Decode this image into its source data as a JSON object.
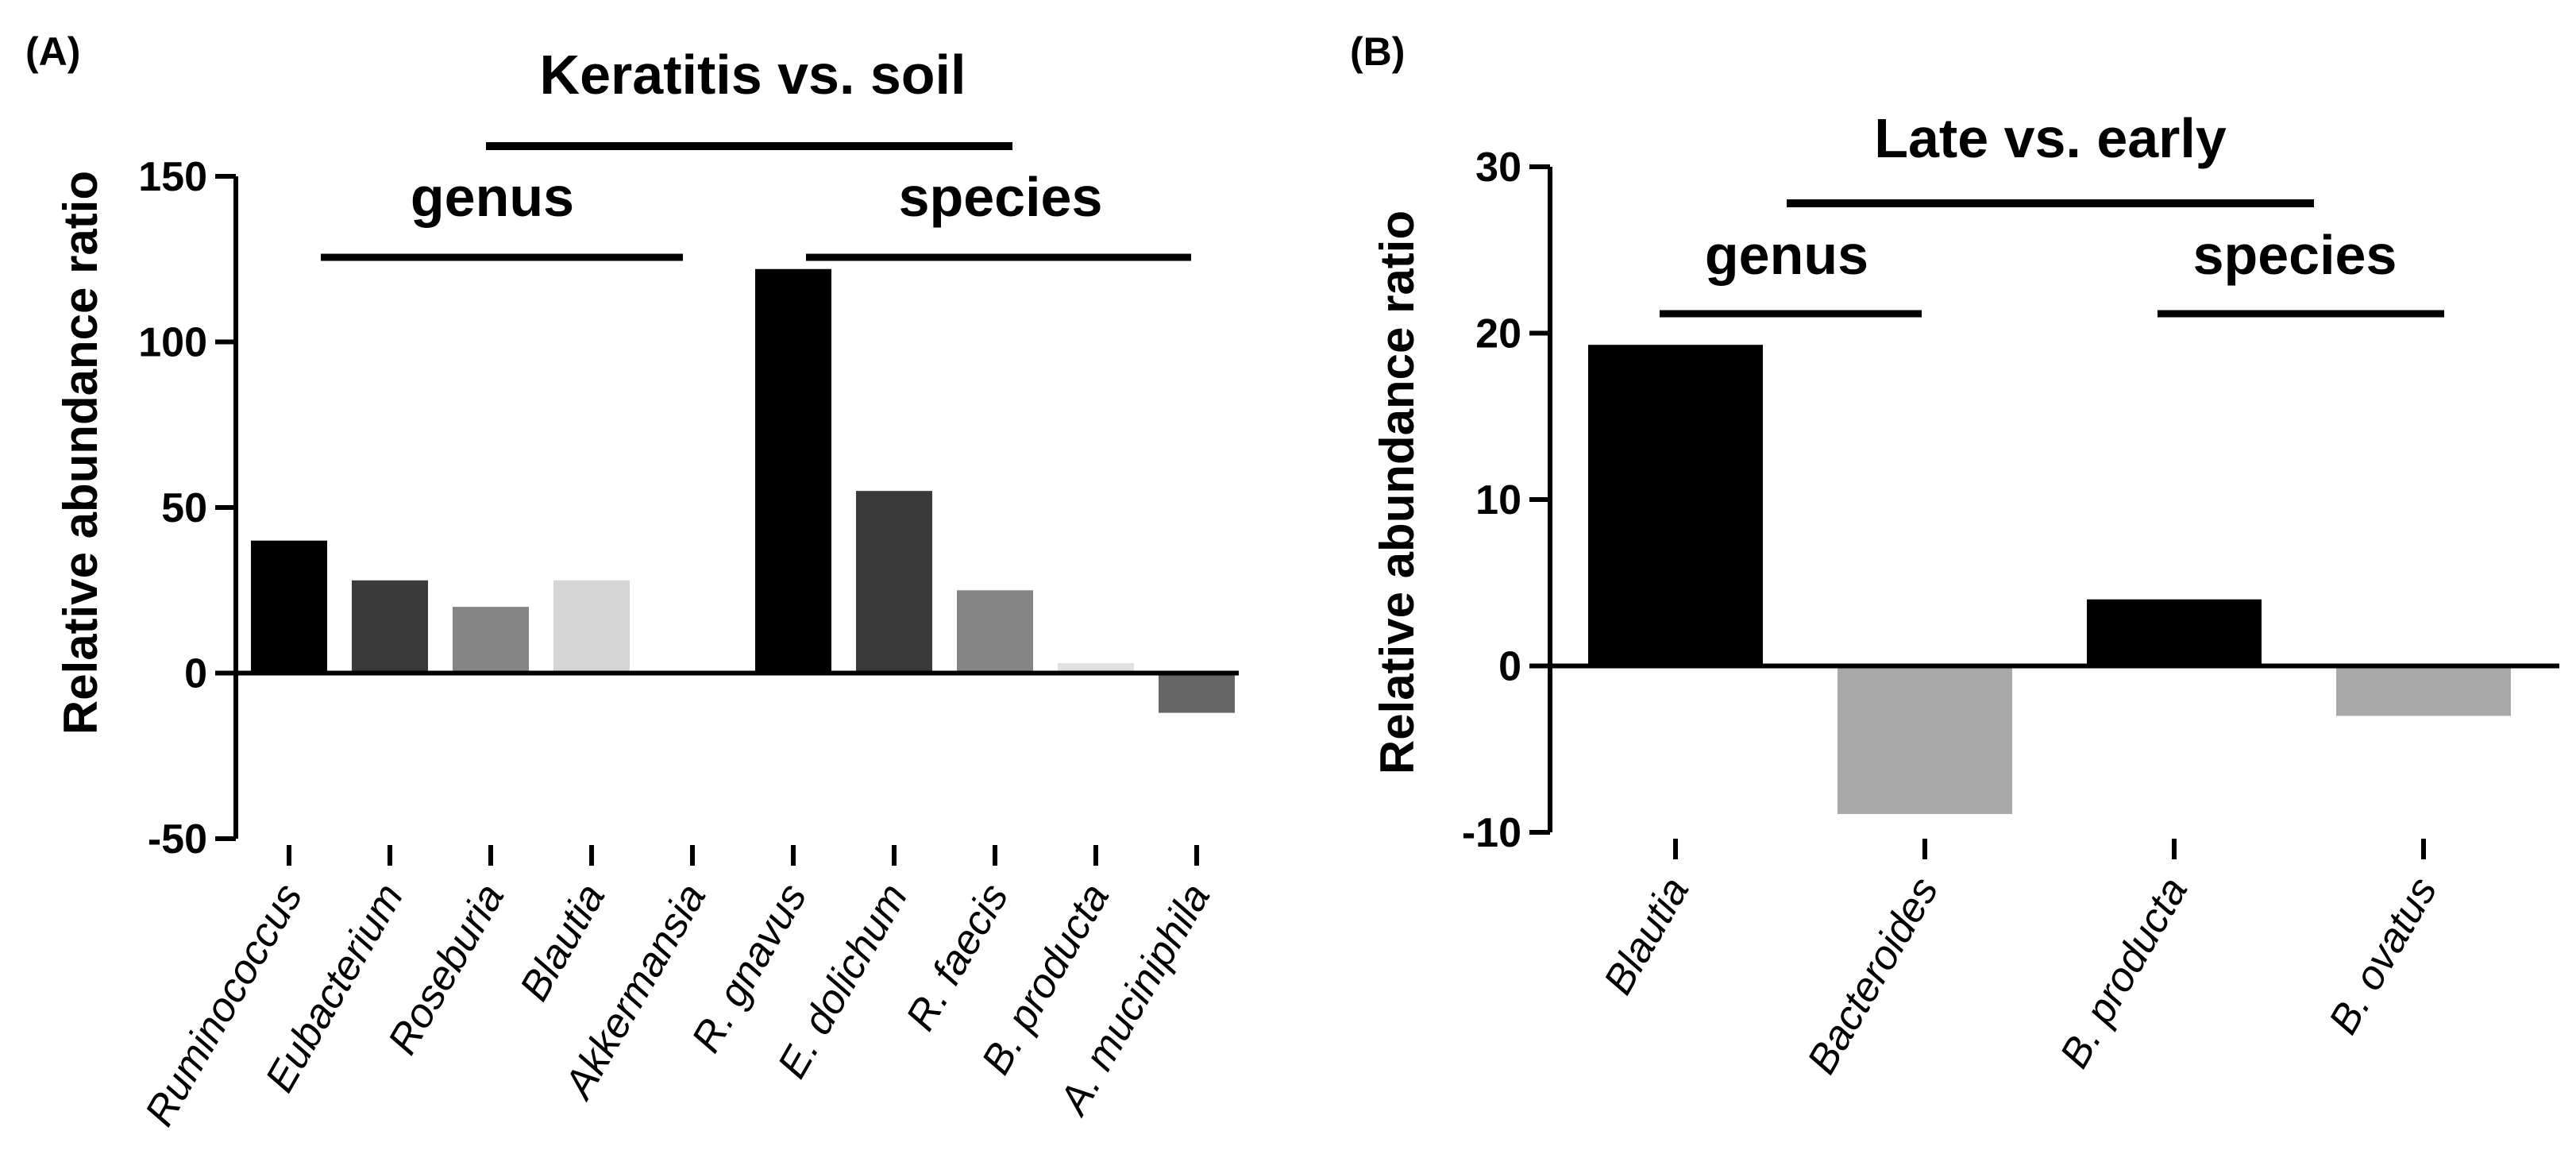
{
  "chart_data": [
    {
      "type": "bar",
      "panel_label": "(A)",
      "title": "Keratitis vs. soil",
      "ylabel": "Relative abundance ratio",
      "xlabel": "",
      "ylim": [
        -50,
        150
      ],
      "yticks": [
        "-50",
        "0",
        "50",
        "100",
        "150"
      ],
      "groups": [
        {
          "label": "genus",
          "span": [
            0,
            4
          ]
        },
        {
          "label": "species",
          "span": [
            5,
            9
          ]
        }
      ],
      "categories": [
        "Ruminococcus",
        "Eubacterium",
        "Roseburia",
        "Blautia",
        "Akkermansia",
        "R. gnavus",
        "E. dolichum",
        "R. faecis",
        "B. producta",
        "A. muciniphila"
      ],
      "values": [
        40,
        28,
        20,
        28,
        0,
        122,
        55,
        25,
        3,
        -12
      ],
      "colors": [
        "#000000",
        "#3a3a3a",
        "#858585",
        "#d5d5d5",
        "#ffffff",
        "#000000",
        "#3a3a3a",
        "#858585",
        "#e0e0e0",
        "#666666"
      ]
    },
    {
      "type": "bar",
      "panel_label": "(B)",
      "title": "Late vs. early",
      "ylabel": "Relative abundance ratio",
      "xlabel": "",
      "ylim": [
        -10,
        30
      ],
      "yticks": [
        "-10",
        "0",
        "10",
        "20",
        "30"
      ],
      "groups": [
        {
          "label": "genus",
          "span": [
            0,
            1
          ]
        },
        {
          "label": "species",
          "span": [
            2,
            3
          ]
        }
      ],
      "categories": [
        "Blautia",
        "Bacteroides",
        "B. producta",
        "B. ovatus"
      ],
      "values": [
        19.3,
        -8.9,
        4,
        -3
      ],
      "colors": [
        "#000000",
        "#a9a9a9",
        "#000000",
        "#a9a9a9"
      ]
    }
  ]
}
